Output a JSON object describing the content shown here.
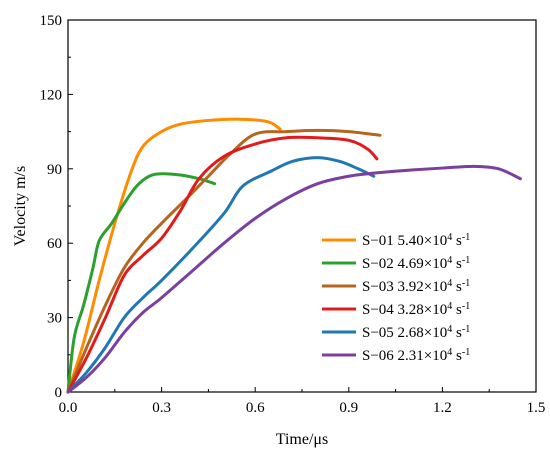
{
  "chart_data": {
    "type": "line",
    "xlabel": "Time/μs",
    "ylabel": "Velocity m/s",
    "xlim": [
      0,
      1.5
    ],
    "ylim": [
      0,
      150
    ],
    "xticks": [
      0.0,
      0.3,
      0.6,
      0.9,
      1.2,
      1.5
    ],
    "yticks": [
      0,
      30,
      60,
      90,
      120,
      150
    ],
    "xtick_labels": [
      "0.0",
      "0.3",
      "0.6",
      "0.9",
      "1.2",
      "1.5"
    ],
    "ytick_labels": [
      "0",
      "30",
      "60",
      "90",
      "120",
      "150"
    ],
    "grid": false,
    "legend_position": "lower-right",
    "series": [
      {
        "name": "S−01 5.40×10",
        "exp": "4",
        "unit": " s",
        "unit_exp": "-1",
        "color": "#ff8c00",
        "x": [
          0.0,
          0.05,
          0.1,
          0.15,
          0.2,
          0.24,
          0.3,
          0.36,
          0.45,
          0.55,
          0.64,
          0.68
        ],
        "y": [
          0,
          20,
          45,
          68,
          88,
          99,
          105,
          108,
          109.5,
          110,
          109,
          106
        ]
      },
      {
        "name": "S−02 4.69×10",
        "exp": "4",
        "unit": " s",
        "unit_exp": "-1",
        "color": "#2ca02c",
        "x": [
          0.0,
          0.02,
          0.05,
          0.08,
          0.1,
          0.14,
          0.18,
          0.22,
          0.26,
          0.3,
          0.36,
          0.42,
          0.47
        ],
        "y": [
          0,
          22,
          35,
          50,
          61,
          68,
          76,
          83,
          87,
          88,
          87.5,
          86,
          84
        ]
      },
      {
        "name": "S−03 3.92×10",
        "exp": "4",
        "unit": " s",
        "unit_exp": "-1",
        "color": "#b5651d",
        "x": [
          0.0,
          0.06,
          0.12,
          0.18,
          0.24,
          0.3,
          0.38,
          0.45,
          0.52,
          0.6,
          0.7,
          0.8,
          0.9,
          1.0
        ],
        "y": [
          0,
          18,
          35,
          50,
          60,
          68,
          78,
          87,
          96,
          104,
          105,
          105.5,
          105,
          103.5
        ]
      },
      {
        "name": "S−04 3.28×10",
        "exp": "4",
        "unit": " s",
        "unit_exp": "-1",
        "color": "#e31a1c",
        "x": [
          0.0,
          0.06,
          0.12,
          0.18,
          0.24,
          0.3,
          0.36,
          0.42,
          0.5,
          0.6,
          0.7,
          0.8,
          0.9,
          0.96,
          0.99
        ],
        "y": [
          0,
          14,
          30,
          47,
          55,
          62,
          73,
          86,
          95,
          100,
          102.5,
          102.5,
          101.5,
          98,
          94
        ]
      },
      {
        "name": "S−05 2.68×10",
        "exp": "4",
        "unit": " s",
        "unit_exp": "-1",
        "color": "#1f77b4",
        "x": [
          0.0,
          0.06,
          0.12,
          0.18,
          0.24,
          0.3,
          0.4,
          0.5,
          0.56,
          0.65,
          0.72,
          0.8,
          0.87,
          0.93,
          0.98
        ],
        "y": [
          0,
          8,
          18,
          30,
          38,
          45,
          58,
          72,
          83,
          89,
          93,
          94.5,
          93,
          90,
          87
        ]
      },
      {
        "name": "S−06 2.31×10",
        "exp": "4",
        "unit": " s",
        "unit_exp": "-1",
        "color": "#7b3fa0",
        "x": [
          0.0,
          0.06,
          0.12,
          0.18,
          0.24,
          0.3,
          0.4,
          0.5,
          0.6,
          0.7,
          0.8,
          0.9,
          1.0,
          1.1,
          1.2,
          1.3,
          1.38,
          1.45
        ],
        "y": [
          0,
          6,
          14,
          24,
          32,
          38,
          49,
          60,
          70,
          78,
          84,
          87,
          88.5,
          89.5,
          90.3,
          91,
          90,
          86
        ]
      }
    ]
  }
}
